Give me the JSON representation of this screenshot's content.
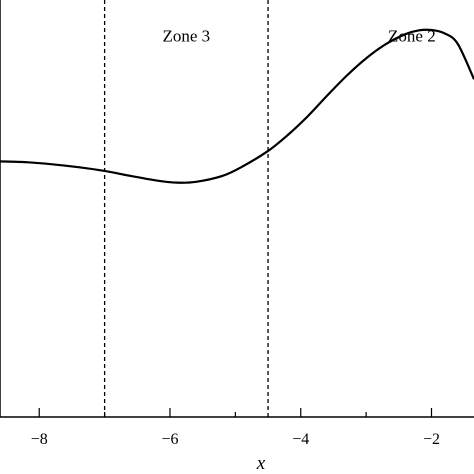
{
  "chart_data": {
    "type": "line",
    "title": "",
    "xlabel": "x",
    "ylabel": "",
    "xlim": [
      -8.6,
      -1.35
    ],
    "ylim": [
      0,
      1
    ],
    "x_ticks": [
      -8,
      -6,
      -4,
      -2
    ],
    "x_tick_labels": [
      "−8",
      "−6",
      "−4",
      "−2"
    ],
    "x_minor_ticks": [
      -7,
      -5,
      -3
    ],
    "grid": false,
    "vertical_lines": [
      {
        "x": -7.0,
        "style": "dashed"
      },
      {
        "x": -4.5,
        "style": "dashed"
      }
    ],
    "annotations": [
      {
        "text": "Zone 3",
        "x": -5.75,
        "y": 0.9
      },
      {
        "text": "Zone 2",
        "x": -2.3,
        "y": 0.9
      }
    ],
    "series": [
      {
        "x": [
          -8.6,
          -8.2,
          -7.8,
          -7.4,
          -7.0,
          -6.6,
          -6.2,
          -5.9,
          -5.6,
          -5.2,
          -4.9,
          -4.5,
          -4.2,
          -3.9,
          -3.6,
          -3.3,
          -3.0,
          -2.7,
          -2.4,
          -2.2,
          -2.0,
          -1.8,
          -1.6,
          -1.35
        ],
        "y": [
          0.613,
          0.611,
          0.606,
          0.599,
          0.59,
          0.578,
          0.567,
          0.562,
          0.564,
          0.578,
          0.6,
          0.638,
          0.676,
          0.72,
          0.77,
          0.818,
          0.86,
          0.894,
          0.918,
          0.927,
          0.928,
          0.92,
          0.895,
          0.81
        ]
      }
    ]
  }
}
